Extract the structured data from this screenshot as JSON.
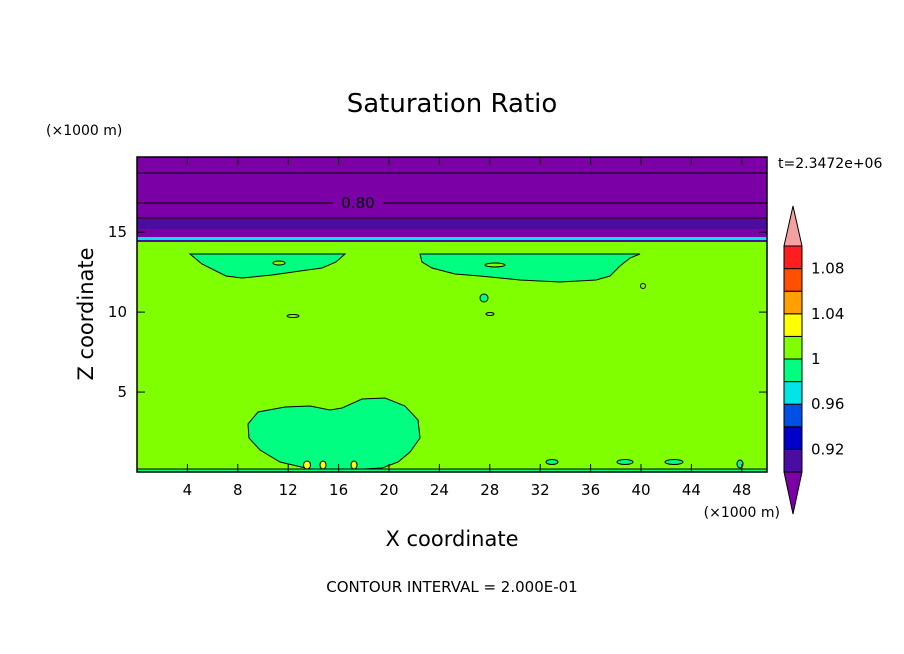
{
  "chart_data": {
    "type": "heatmap",
    "title": "Saturation Ratio",
    "xlabel": "X coordinate",
    "ylabel": "Z coordinate",
    "x_unit": "(×1000 m)",
    "y_unit": "(×1000 m)",
    "xlim": [
      0,
      50
    ],
    "ylim": [
      0,
      19.7
    ],
    "x_ticks": [
      4,
      8,
      12,
      16,
      20,
      24,
      28,
      32,
      36,
      40,
      44,
      48
    ],
    "x_tick_labels": [
      "4",
      "8",
      "12",
      "16",
      "20",
      "24",
      "28",
      "32",
      "36",
      "40",
      "44",
      "48"
    ],
    "y_ticks": [
      5,
      10,
      15
    ],
    "y_tick_labels": [
      "5",
      "10",
      "15"
    ],
    "time_label": "t=2.3472e+06",
    "contour_label": "0.80",
    "contour_note": "CONTOUR INTERVAL = 2.000E-01",
    "regions": [
      {
        "name": "upper-dry-layer",
        "value_range": "< 0.90",
        "z_from": 14.9,
        "z_to": 19.7,
        "color": "#7b00a5"
      },
      {
        "name": "upper-dark-band",
        "value_range": "0.90-0.92",
        "z_from": 15.6,
        "z_to": 16.2,
        "color": "#4b0d9f"
      },
      {
        "name": "cyan-band",
        "value_range": "0.98-1.00",
        "z_from": 14.6,
        "z_to": 14.9,
        "color": "#00e6e6"
      },
      {
        "name": "main-field",
        "value_range": "1.00-1.02",
        "z_from": 0.3,
        "z_to": 14.6,
        "color": "#80ff00"
      },
      {
        "name": "upper-cloud-patches",
        "value_range": "0.98-1.00",
        "z_from": 12.2,
        "z_to": 13.9,
        "color": "#00ff80"
      },
      {
        "name": "lower-cloud-blob",
        "value_range": "0.98-1.00",
        "z_from": 0.3,
        "z_to": 4.8,
        "color": "#00ff80"
      }
    ],
    "colorbar": {
      "colors": [
        "#7b00a5",
        "#4b0d9f",
        "#0000c8",
        "#0050e6",
        "#00e6e6",
        "#00ff80",
        "#80ff00",
        "#ffff00",
        "#ffa000",
        "#ff5000",
        "#ff1e1e",
        "#f4a0a0"
      ],
      "tick_labels": [
        "0.92",
        "0.96",
        "1",
        "1.04",
        "1.08"
      ]
    }
  }
}
